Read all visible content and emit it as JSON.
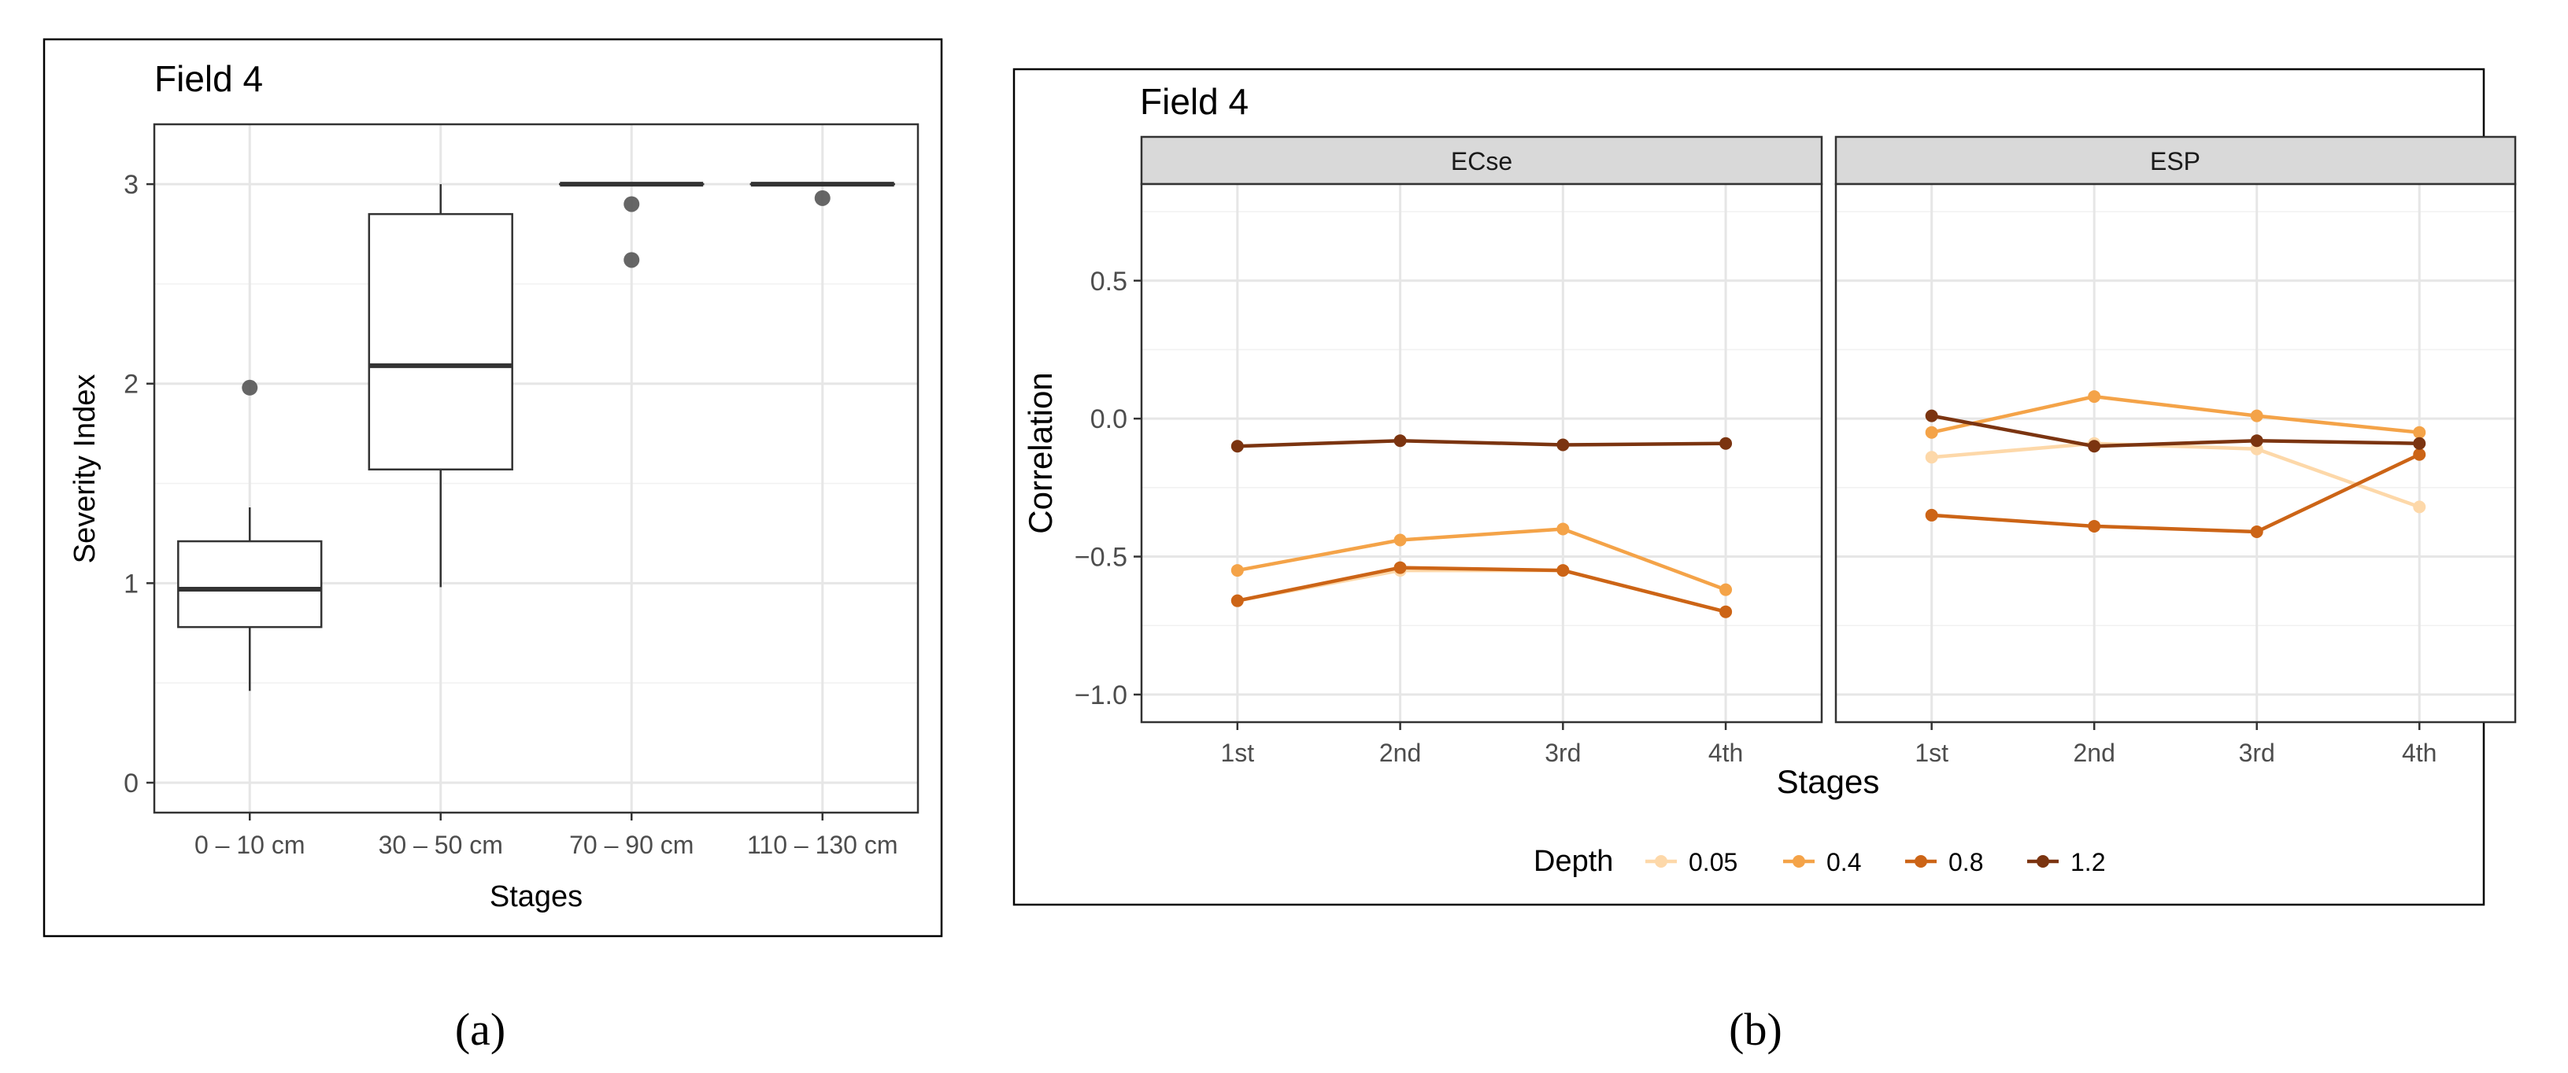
{
  "colors": {
    "depth_0.05": "#fdd8a9",
    "depth_0.4": "#f4a348",
    "depth_0.8": "#cc6416",
    "depth_1.2": "#7b3410",
    "outlier": "#555555",
    "box_line": "#333333"
  },
  "labels": {
    "a": "(a)",
    "b": "(b)"
  },
  "chart_data": [
    {
      "type": "box",
      "title": "Field 4",
      "xlabel": "Stages",
      "ylabel": "Severity Index",
      "ylim": [
        -0.15,
        3.3
      ],
      "yticks": [
        0,
        1,
        2,
        3
      ],
      "grid": true,
      "categories": [
        "0 – 10 cm",
        "30 – 50 cm",
        "70 – 90 cm",
        "110 – 130 cm"
      ],
      "boxes": [
        {
          "q1": 0.78,
          "median": 0.97,
          "q3": 1.21,
          "whisker_low": 0.46,
          "whisker_high": 1.38,
          "outliers": [
            1.98
          ]
        },
        {
          "q1": 1.57,
          "median": 2.09,
          "q3": 2.85,
          "whisker_low": 0.98,
          "whisker_high": 3.0,
          "outliers": []
        },
        {
          "q1": 3.0,
          "median": 3.0,
          "q3": 3.0,
          "whisker_low": 3.0,
          "whisker_high": 3.0,
          "outliers": [
            2.9,
            2.62
          ]
        },
        {
          "q1": 3.0,
          "median": 3.0,
          "q3": 3.0,
          "whisker_low": 3.0,
          "whisker_high": 3.0,
          "outliers": [
            2.93
          ]
        }
      ]
    },
    {
      "type": "line",
      "title": "Field 4",
      "xlabel": "Stages",
      "ylabel": "Correlation",
      "ylim": [
        -1.1,
        0.85
      ],
      "yticks": [
        0.5,
        0.0,
        -0.5,
        -1.0
      ],
      "ytick_labels": [
        "0.5",
        "0.0",
        "−0.5",
        "−1.0"
      ],
      "grid": true,
      "categories": [
        "1st",
        "2nd",
        "3rd",
        "4th"
      ],
      "legend": {
        "title": "Depth",
        "position": "bottom",
        "entries": [
          "0.05",
          "0.4",
          "0.8",
          "1.2"
        ]
      },
      "facets": [
        {
          "name": "ECse",
          "series": [
            {
              "name": "0.05",
              "values": [
                -0.66,
                -0.55,
                -0.55,
                -0.7
              ]
            },
            {
              "name": "0.4",
              "values": [
                -0.55,
                -0.44,
                -0.4,
                -0.62
              ]
            },
            {
              "name": "0.8",
              "values": [
                -0.66,
                -0.54,
                -0.55,
                -0.7
              ]
            },
            {
              "name": "1.2",
              "values": [
                -0.1,
                -0.08,
                -0.095,
                -0.09
              ]
            }
          ]
        },
        {
          "name": "ESP",
          "series": [
            {
              "name": "0.05",
              "values": [
                -0.14,
                -0.09,
                -0.11,
                -0.32
              ]
            },
            {
              "name": "0.4",
              "values": [
                -0.05,
                0.08,
                0.01,
                -0.05
              ]
            },
            {
              "name": "0.8",
              "values": [
                -0.35,
                -0.39,
                -0.41,
                -0.13
              ]
            },
            {
              "name": "1.2",
              "values": [
                0.01,
                -0.1,
                -0.08,
                -0.09
              ]
            }
          ]
        }
      ]
    }
  ]
}
